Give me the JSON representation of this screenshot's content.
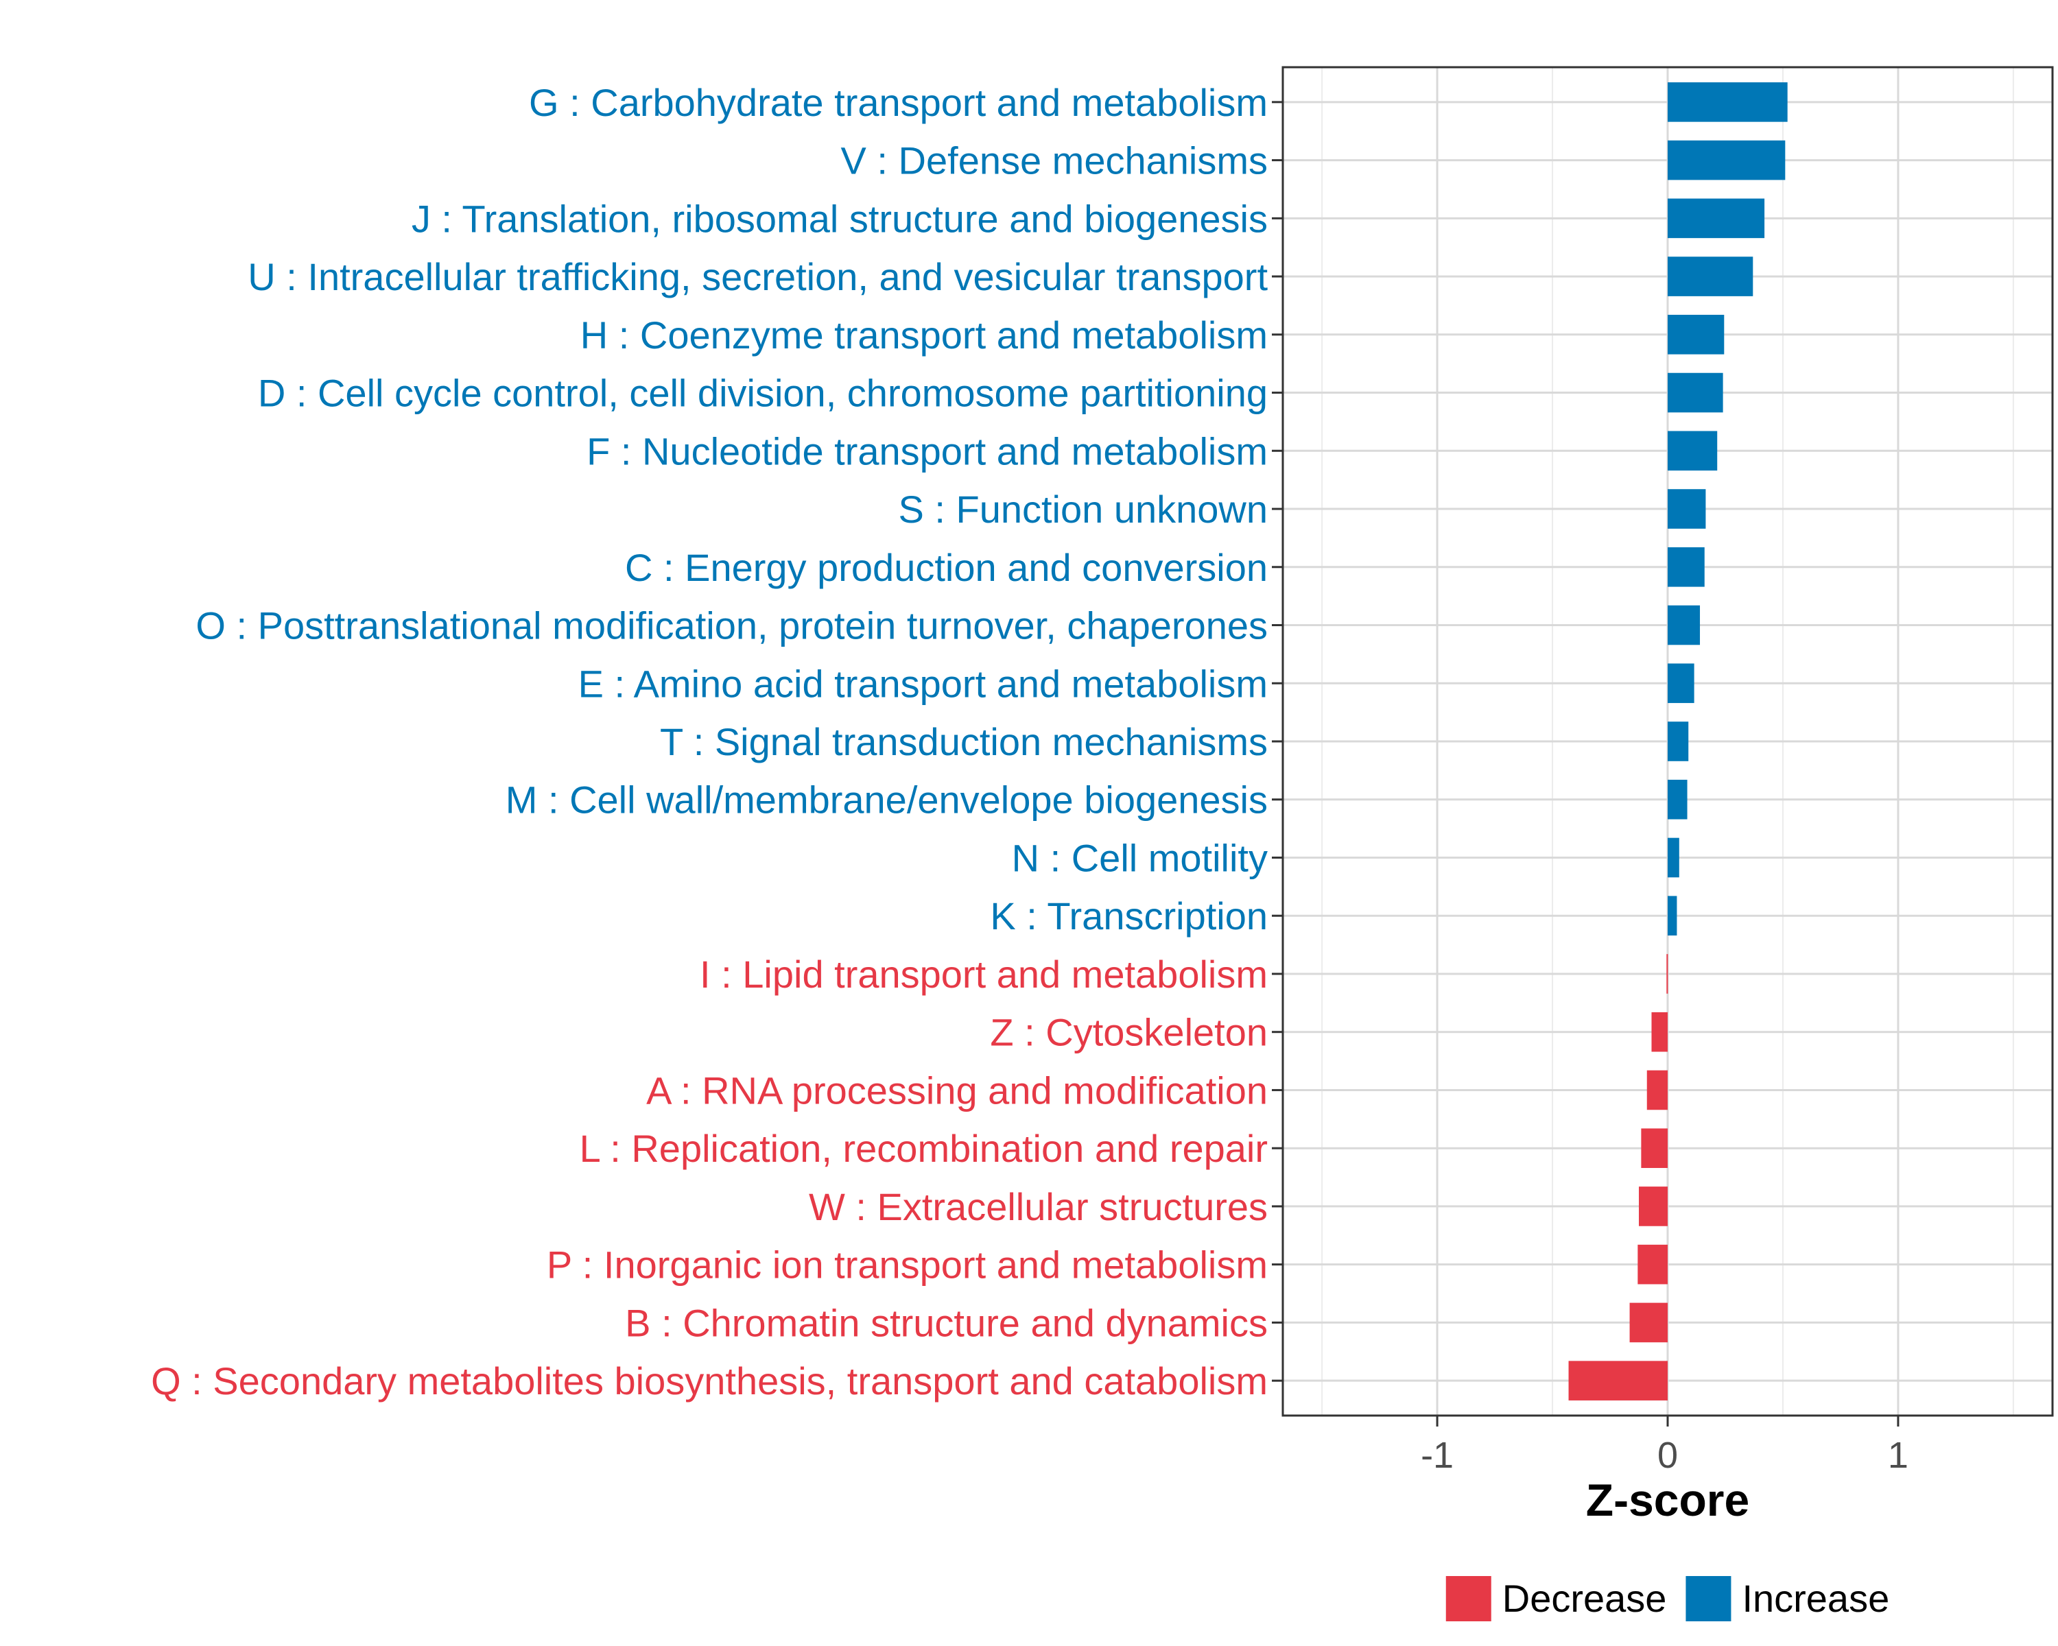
{
  "chart_data": {
    "type": "bar",
    "orientation": "horizontal",
    "xlabel": "Z-score",
    "ylabel": "",
    "xlim": [
      -1.67,
      1.67
    ],
    "xticks": [
      -1,
      0,
      1
    ],
    "xtick_labels": [
      "-1",
      "0",
      "1"
    ],
    "grid": true,
    "legend_position": "bottom",
    "colors": {
      "Decrease": "#e63946",
      "Increase": "#0077b6"
    },
    "legend": [
      {
        "name": "Decrease",
        "color": "#e63946"
      },
      {
        "name": "Increase",
        "color": "#0077b6"
      }
    ],
    "categories": [
      "G : Carbohydrate transport and metabolism",
      "V : Defense mechanisms",
      "J : Translation, ribosomal structure and biogenesis",
      "U : Intracellular trafficking, secretion, and vesicular transport",
      "H : Coenzyme transport and metabolism",
      "D : Cell cycle control, cell division, chromosome partitioning",
      "F : Nucleotide transport and metabolism",
      "S : Function unknown",
      "C : Energy production and conversion",
      "O : Posttranslational modification, protein turnover, chaperones",
      "E : Amino acid transport and metabolism",
      "T : Signal transduction mechanisms",
      "M : Cell wall/membrane/envelope biogenesis",
      "N : Cell motility",
      "K : Transcription",
      "I : Lipid transport and metabolism",
      "Z : Cytoskeleton",
      "A : RNA processing and modification",
      "L : Replication, recombination and repair",
      "W : Extracellular structures",
      "P : Inorganic ion transport and metabolism",
      "B : Chromatin structure and dynamics",
      "Q : Secondary metabolites biosynthesis, transport and catabolism"
    ],
    "values": [
      0.52,
      0.51,
      0.42,
      0.37,
      0.245,
      0.24,
      0.215,
      0.165,
      0.16,
      0.14,
      0.115,
      0.09,
      0.085,
      0.05,
      0.04,
      -0.005,
      -0.07,
      -0.09,
      -0.115,
      -0.125,
      -0.13,
      -0.165,
      -0.43
    ]
  }
}
